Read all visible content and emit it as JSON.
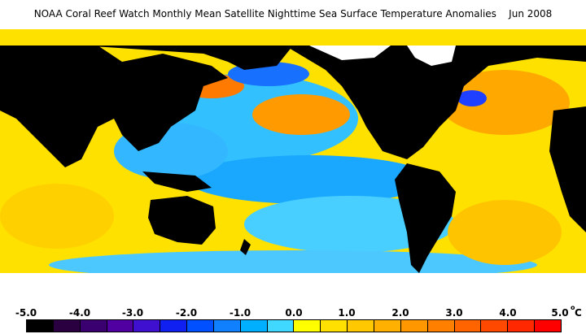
{
  "title": "NOAA Coral Reef Watch Monthly Mean Satellite Nighttime Sea Surface Temperature Anomalies    Jun 2008",
  "legend": {
    "labels": [
      "-5.0",
      "-4.0",
      "-3.0",
      "-2.0",
      "-1.0",
      "0.0",
      "1.0",
      "2.0",
      "3.0",
      "4.0",
      "5.0"
    ],
    "unit": "C",
    "degree": "o",
    "colors": [
      "#000000",
      "#2a0040",
      "#3b0070",
      "#5000a0",
      "#4010d0",
      "#1020f0",
      "#0050ff",
      "#1080ff",
      "#00b0ff",
      "#40d8ff",
      "#ffff00",
      "#ffe000",
      "#ffc800",
      "#ffb000",
      "#ff9800",
      "#ff8000",
      "#ff6400",
      "#ff4800",
      "#ff2800",
      "#ff0000"
    ]
  },
  "map": {
    "ocean_colors": [
      "#00aaff",
      "#33c4ff",
      "#ffff00",
      "#ffd200",
      "#ffa000",
      "#ff6a00",
      "#2050ff"
    ],
    "land_color": "#000000",
    "ice_color": "#ffffff"
  }
}
